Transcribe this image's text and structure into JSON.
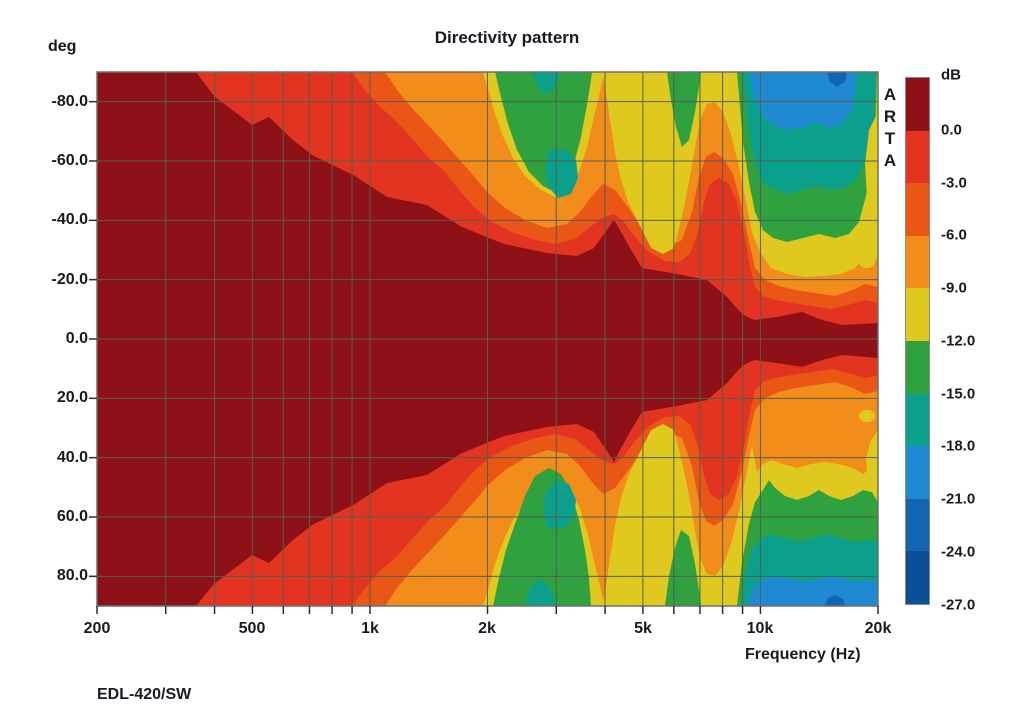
{
  "title": "Directivity pattern",
  "y_axis": {
    "label": "deg",
    "ticks": [
      "-80.0",
      "-60.0",
      "-40.0",
      "-20.0",
      "0.0",
      "20.0",
      "40.0",
      "60.0",
      "80.0"
    ]
  },
  "x_axis": {
    "label": "Frequency (Hz)",
    "ticks": [
      "200",
      "500",
      "1k",
      "2k",
      "5k",
      "10k",
      "20k"
    ]
  },
  "colorbar": {
    "label": "dB",
    "tick_labels": [
      "0.0",
      "-3.0",
      "-6.0",
      "-9.0",
      "-12.0",
      "-15.0",
      "-18.0",
      "-21.0",
      "-24.0",
      "-27.0"
    ],
    "colors": [
      "#8e1118",
      "#e23420",
      "#e95616",
      "#f28c1a",
      "#e0c91f",
      "#2fa13e",
      "#0ba08c",
      "#1f8ad2",
      "#1464b4",
      "#0d4f96"
    ]
  },
  "watermark": {
    "letters": [
      "A",
      "R",
      "T",
      "A"
    ]
  },
  "footer": "EDL-420/SW",
  "palette": {
    "p0": "#8e1118",
    "p1": "#e23420",
    "p2": "#e95616",
    "p3": "#f28c1a",
    "p4": "#e0c91f",
    "p5": "#2fa13e",
    "p6": "#0ba08c",
    "p7": "#1f8ad2",
    "p8": "#1464b4",
    "p9": "#0d4f96",
    "grid": "#51604f",
    "frame": "#6e6e6e",
    "text": "#191923"
  },
  "chart_data": {
    "type": "heatmap",
    "title": "Directivity pattern",
    "xlabel": "Frequency (Hz)",
    "x_scale": "log",
    "x_range": [
      200,
      20000
    ],
    "x_tick_labels": [
      "200",
      "500",
      "1k",
      "2k",
      "5k",
      "10k",
      "20k"
    ],
    "ylabel": "deg",
    "y_range": [
      -90,
      90
    ],
    "y_tick_step": 20,
    "z_label": "dB",
    "z_levels": [
      0.0,
      -3.0,
      -6.0,
      -9.0,
      -12.0,
      -15.0,
      -18.0,
      -21.0,
      -24.0,
      -27.0
    ],
    "z_level_colors": [
      {
        "level_db": "above 0.0",
        "color": "#8e1118"
      },
      {
        "level_db": "-3.0 to 0.0",
        "color": "#e23420"
      },
      {
        "level_db": "-6.0 to -3.0",
        "color": "#e95616"
      },
      {
        "level_db": "-9.0 to -6.0",
        "color": "#f28c1a"
      },
      {
        "level_db": "-12.0 to -9.0",
        "color": "#e0c91f"
      },
      {
        "level_db": "-15.0 to -12.0",
        "color": "#2fa13e"
      },
      {
        "level_db": "-18.0 to -15.0",
        "color": "#0ba08c"
      },
      {
        "level_db": "-21.0 to -18.0",
        "color": "#1f8ad2"
      },
      {
        "level_db": "-24.0 to -21.0",
        "color": "#1464b4"
      },
      {
        "level_db": "-27.0 to -24.0",
        "color": "#0d4f96"
      }
    ],
    "grid": true,
    "legend_position": "right",
    "source_watermark": "ARTA",
    "annotation": "EDL-420/SW",
    "beamwidth_0dB_contour_half_angle": [
      {
        "freq_hz": 200,
        "half_angle_deg": 90
      },
      {
        "freq_hz": 360,
        "half_angle_deg": 90
      },
      {
        "freq_hz": 500,
        "half_angle_deg": 73
      },
      {
        "freq_hz": 700,
        "half_angle_deg": 62
      },
      {
        "freq_hz": 1000,
        "half_angle_deg": 50
      },
      {
        "freq_hz": 1400,
        "half_angle_deg": 45
      },
      {
        "freq_hz": 2200,
        "half_angle_deg": 32
      },
      {
        "freq_hz": 3400,
        "half_angle_deg": 28
      },
      {
        "freq_hz": 4300,
        "half_angle_deg": 40
      },
      {
        "freq_hz": 5100,
        "half_angle_deg": 24
      },
      {
        "freq_hz": 7500,
        "half_angle_deg": 20
      },
      {
        "freq_hz": 9000,
        "half_angle_deg": 9
      },
      {
        "freq_hz": 10000,
        "half_angle_deg": 7
      },
      {
        "freq_hz": 13500,
        "half_angle_deg": 10
      },
      {
        "freq_hz": 20000,
        "half_angle_deg": 6
      }
    ]
  }
}
